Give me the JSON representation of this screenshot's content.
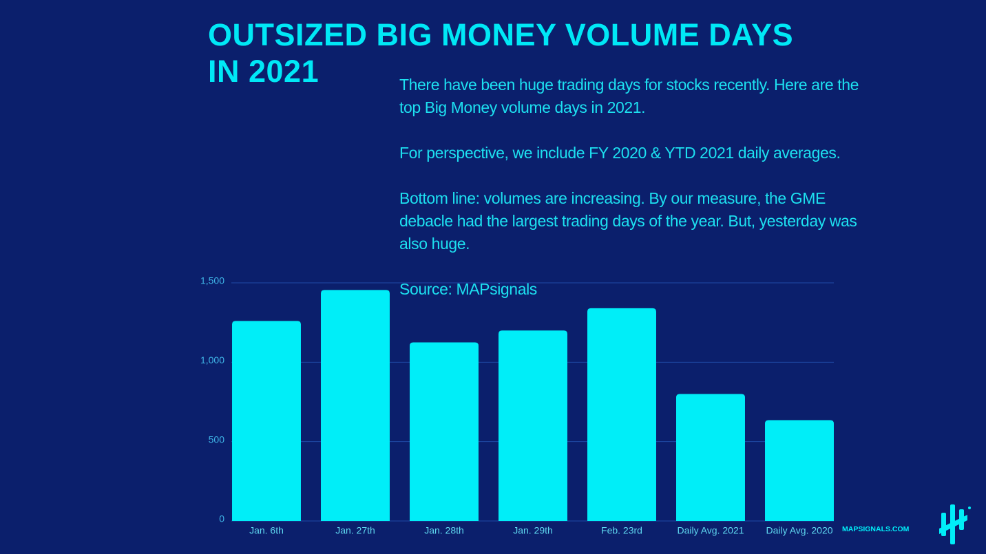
{
  "chart_data": {
    "type": "bar",
    "title": "OUTSIZED BIG MONEY VOLUME DAYS IN 2021",
    "annotations": [
      "There have been huge trading days for stocks recently. Here are the top Big Money volume days in 2021.",
      "For perspective, we include FY 2020 & YTD 2021 daily averages.",
      "Bottom line: volumes are increasing. By our measure, the GME debacle had the largest trading days of the year. But, yesterday was also huge.",
      "Source: MAPsignals"
    ],
    "brand": "MAPSIGNALS.COM",
    "categories": [
      "Jan. 6th",
      "Jan. 27th",
      "Jan. 28th",
      "Jan. 29th",
      "Feb. 23rd",
      "Daily Avg. 2021",
      "Daily Avg. 2020"
    ],
    "values": [
      1260,
      1455,
      1125,
      1200,
      1340,
      800,
      635
    ],
    "color": "#00eef8",
    "ylim": [
      0,
      1500
    ],
    "yticks": [
      0,
      500,
      {
        "value": 1000,
        "label": "1,000"
      },
      {
        "value": 1500,
        "label": "1,500"
      }
    ],
    "grid": true
  }
}
